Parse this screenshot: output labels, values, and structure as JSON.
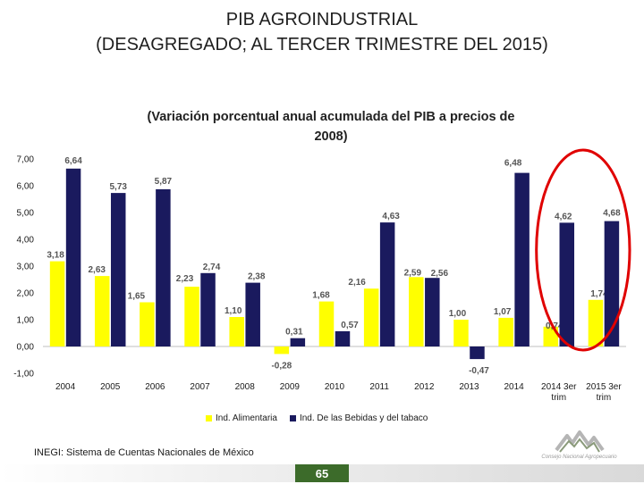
{
  "title": {
    "line1": "PIB AGROINDUSTRIAL",
    "line2": "(DESAGREGADO; AL TERCER TRIMESTRE DEL 2015)"
  },
  "colors": {
    "food": "#ffff00",
    "beverages": "#1a1a5e",
    "highlight": "#e00000",
    "page_number_bg": "#3c6b2a"
  },
  "chart_data": {
    "type": "bar",
    "title": "(Variación porcentual anual acumulada del PIB a precios de 2008)",
    "categories": [
      "2004",
      "2005",
      "2006",
      "2007",
      "2008",
      "2009",
      "2010",
      "2011",
      "2012",
      "2013",
      "2014",
      "2014 3er trim",
      "2015 3er trim"
    ],
    "category_lines": [
      [
        "2004"
      ],
      [
        "2005"
      ],
      [
        "2006"
      ],
      [
        "2007"
      ],
      [
        "2008"
      ],
      [
        "2009"
      ],
      [
        "2010"
      ],
      [
        "2011"
      ],
      [
        "2012"
      ],
      [
        "2013"
      ],
      [
        "2014"
      ],
      [
        "2014 3er",
        "trim"
      ],
      [
        "2015 3er",
        "trim"
      ]
    ],
    "series": [
      {
        "name": "Ind. Alimentaria",
        "color": "#ffff00",
        "values": [
          3.18,
          2.63,
          1.65,
          2.23,
          1.1,
          -0.28,
          1.68,
          2.16,
          2.59,
          1.0,
          1.07,
          0.74,
          1.74
        ],
        "labels": [
          "3,18",
          "2,63",
          "1,65",
          "2,23",
          "1,10",
          "-0,28",
          "1,68",
          "2,16",
          "2,59",
          "1,00",
          "1,07",
          "0,74",
          "1,74"
        ]
      },
      {
        "name": "Ind. De las Bebidas y del tabaco",
        "color": "#1a1a5e",
        "values": [
          6.64,
          5.73,
          5.87,
          2.74,
          2.38,
          0.31,
          0.57,
          4.63,
          2.56,
          -0.47,
          6.48,
          4.62,
          4.68
        ],
        "labels": [
          "6,64",
          "5,73",
          "5,87",
          "2,74",
          "2,38",
          "0,31",
          "0,57",
          "4,63",
          "2,56",
          "-0,47",
          "6,48",
          "4,62",
          "4,68"
        ]
      }
    ],
    "ylim": [
      -1,
      7
    ],
    "yticks": [
      "-1,00",
      "0,00",
      "1,00",
      "2,00",
      "3,00",
      "4,00",
      "5,00",
      "6,00",
      "7,00"
    ],
    "grid": false,
    "legend_position": "bottom",
    "highlighted_categories": [
      "2014 3er trim",
      "2015 3er trim"
    ]
  },
  "legend": {
    "food": "Ind. Alimentaria",
    "beverages": "Ind. De las Bebidas y del tabaco"
  },
  "source": "INEGI: Sistema de Cuentas Nacionales de México",
  "logo": {
    "icon": "mountains-logo-icon",
    "caption": "Consejo Nacional Agropecuario"
  },
  "page_number": "65"
}
